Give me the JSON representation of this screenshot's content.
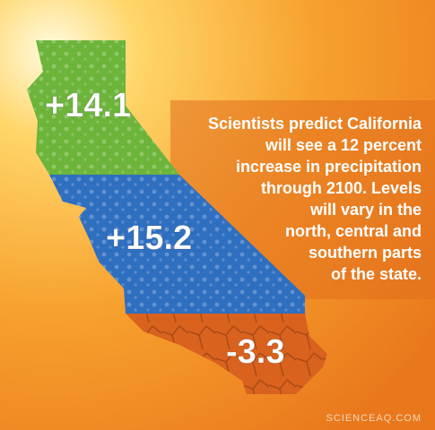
{
  "regions": [
    {
      "label": "+14.1"
    },
    {
      "label": "+15.2"
    },
    {
      "label": "-3.3"
    }
  ],
  "text": {
    "lines": [
      "Scientists predict California",
      "will see a 12 percent",
      "increase in precipitation",
      "through 2100. Levels",
      "will vary in the",
      "north, central and",
      "southern parts",
      "of the state."
    ]
  },
  "watermark": "SCIENCEAQ.COM"
}
